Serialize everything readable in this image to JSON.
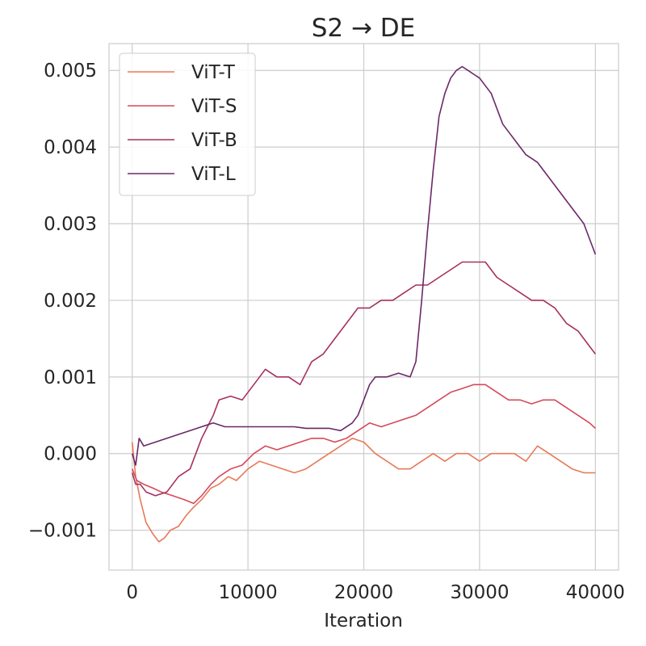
{
  "chart_data": {
    "type": "line",
    "title": "S2 → DE",
    "xlabel": "Iteration",
    "ylabel": "",
    "xlim": [
      -2000,
      42000
    ],
    "ylim": [
      -0.00152,
      0.00535
    ],
    "xticks": [
      0,
      10000,
      20000,
      30000,
      40000
    ],
    "xtick_labels": [
      "0",
      "10000",
      "20000",
      "30000",
      "40000"
    ],
    "yticks": [
      -0.001,
      0.0,
      0.001,
      0.002,
      0.003,
      0.004,
      0.005
    ],
    "ytick_labels": [
      "−0.001",
      "0.000",
      "0.001",
      "0.002",
      "0.003",
      "0.004",
      "0.005"
    ],
    "grid": true,
    "legend_position": "top-left",
    "series": [
      {
        "name": "ViT-T",
        "color": "#e8795a",
        "x": [
          0,
          300,
          700,
          1200,
          1800,
          2300,
          2800,
          3300,
          4000,
          4700,
          5300,
          6000,
          6800,
          7500,
          8300,
          9000,
          10000,
          11000,
          12000,
          13000,
          14000,
          15000,
          16000,
          17000,
          18000,
          19000,
          20000,
          21000,
          22000,
          23000,
          24000,
          25000,
          26000,
          27000,
          28000,
          29000,
          30000,
          31000,
          32000,
          33000,
          34000,
          35000,
          36000,
          37000,
          38000,
          39000,
          40000
        ],
        "y": [
          0.00015,
          -0.0003,
          -0.0006,
          -0.0009,
          -0.00105,
          -0.00115,
          -0.0011,
          -0.001,
          -0.00095,
          -0.0008,
          -0.0007,
          -0.0006,
          -0.00045,
          -0.0004,
          -0.0003,
          -0.00035,
          -0.0002,
          -0.0001,
          -0.00015,
          -0.0002,
          -0.00025,
          -0.0002,
          -0.0001,
          0.0,
          0.0001,
          0.0002,
          0.00015,
          0.0,
          -0.0001,
          -0.0002,
          -0.0002,
          -0.0001,
          0.0,
          -0.0001,
          0.0,
          0.0,
          -0.0001,
          0.0,
          0.0,
          0.0,
          -0.0001,
          0.0001,
          0.0,
          -0.0001,
          -0.0002,
          -0.00025,
          -0.00025
        ]
      },
      {
        "name": "ViT-S",
        "color": "#d54a5a",
        "x": [
          0,
          400,
          1000,
          1800,
          2500,
          3500,
          4500,
          5300,
          6000,
          6800,
          7500,
          8500,
          9500,
          10500,
          11500,
          12500,
          13500,
          14500,
          15500,
          16500,
          17500,
          18500,
          19500,
          20500,
          21500,
          22500,
          23500,
          24500,
          25500,
          26500,
          27500,
          28500,
          29500,
          30500,
          31500,
          32500,
          33500,
          34500,
          35500,
          36500,
          37500,
          38500,
          39500,
          40000
        ],
        "y": [
          -0.0002,
          -0.00035,
          -0.0004,
          -0.00045,
          -0.0005,
          -0.00055,
          -0.0006,
          -0.00065,
          -0.00055,
          -0.0004,
          -0.0003,
          -0.0002,
          -0.00015,
          0.0,
          0.0001,
          5e-05,
          0.0001,
          0.00015,
          0.0002,
          0.0002,
          0.00015,
          0.0002,
          0.0003,
          0.0004,
          0.00035,
          0.0004,
          0.00045,
          0.0005,
          0.0006,
          0.0007,
          0.0008,
          0.00085,
          0.0009,
          0.0009,
          0.0008,
          0.0007,
          0.0007,
          0.00065,
          0.0007,
          0.0007,
          0.0006,
          0.0005,
          0.0004,
          0.00033
        ]
      },
      {
        "name": "ViT-B",
        "color": "#a53160",
        "x": [
          0,
          300,
          700,
          1200,
          2000,
          3000,
          4000,
          5000,
          6000,
          7000,
          7500,
          8500,
          9500,
          10500,
          11500,
          12500,
          13500,
          14500,
          15500,
          16500,
          17500,
          18500,
          19500,
          20500,
          21500,
          22500,
          23500,
          24500,
          25500,
          26500,
          27500,
          28500,
          29500,
          30500,
          31500,
          32500,
          33500,
          34500,
          35500,
          36500,
          37500,
          38500,
          39500,
          40000
        ],
        "y": [
          -0.00025,
          -0.0004,
          -0.0004,
          -0.0005,
          -0.00055,
          -0.0005,
          -0.0003,
          -0.0002,
          0.0002,
          0.0005,
          0.0007,
          0.00075,
          0.0007,
          0.0009,
          0.0011,
          0.001,
          0.001,
          0.0009,
          0.0012,
          0.0013,
          0.0015,
          0.0017,
          0.0019,
          0.0019,
          0.002,
          0.002,
          0.0021,
          0.0022,
          0.0022,
          0.0023,
          0.0024,
          0.0025,
          0.0025,
          0.0025,
          0.0023,
          0.0022,
          0.0021,
          0.002,
          0.002,
          0.0019,
          0.0017,
          0.0016,
          0.0014,
          0.0013
        ]
      },
      {
        "name": "ViT-L",
        "color": "#6b2868",
        "x": [
          0,
          300,
          600,
          1000,
          2000,
          3000,
          4000,
          5000,
          6000,
          7000,
          8000,
          9000,
          10000,
          11000,
          12000,
          13000,
          14000,
          15000,
          16000,
          17000,
          18000,
          19000,
          19500,
          20000,
          20500,
          21000,
          22000,
          23000,
          24000,
          24500,
          25000,
          25500,
          26000,
          26500,
          27000,
          27500,
          28000,
          28500,
          29000,
          29500,
          30000,
          31000,
          32000,
          33000,
          34000,
          35000,
          36000,
          37000,
          38000,
          39000,
          40000
        ],
        "y": [
          0.0,
          -0.00015,
          0.0002,
          0.0001,
          0.00015,
          0.0002,
          0.00025,
          0.0003,
          0.00035,
          0.0004,
          0.00035,
          0.00035,
          0.00035,
          0.00035,
          0.00035,
          0.00035,
          0.00035,
          0.00033,
          0.00033,
          0.00033,
          0.0003,
          0.0004,
          0.0005,
          0.0007,
          0.0009,
          0.001,
          0.001,
          0.00105,
          0.001,
          0.0012,
          0.002,
          0.0029,
          0.0037,
          0.0044,
          0.0047,
          0.0049,
          0.005,
          0.00505,
          0.005,
          0.00495,
          0.0049,
          0.0047,
          0.0043,
          0.0041,
          0.0039,
          0.0038,
          0.0036,
          0.0034,
          0.0032,
          0.003,
          0.0026
        ]
      }
    ]
  }
}
